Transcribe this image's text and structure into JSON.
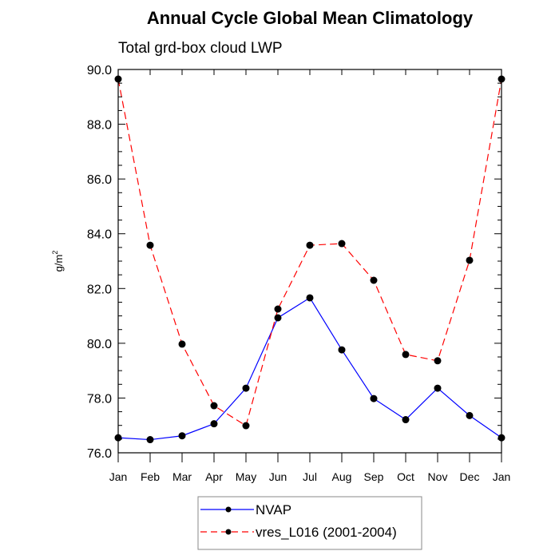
{
  "chart_data": {
    "type": "line",
    "title": "Annual Cycle Global Mean Climatology",
    "subtitle": "Total grd-box cloud LWP",
    "xlabel": "",
    "ylabel": "g/m",
    "ylabel_superscript": "2",
    "categories": [
      "Jan",
      "Feb",
      "Mar",
      "Apr",
      "May",
      "Jun",
      "Jul",
      "Aug",
      "Sep",
      "Oct",
      "Nov",
      "Dec",
      "Jan"
    ],
    "ylim": [
      76.0,
      90.0
    ],
    "yticks": [
      76.0,
      78.0,
      80.0,
      82.0,
      84.0,
      86.0,
      88.0,
      90.0
    ],
    "ytick_labels": [
      "76.0",
      "78.0",
      "80.0",
      "82.0",
      "84.0",
      "86.0",
      "88.0",
      "90.0"
    ],
    "yminor_step": 0.5,
    "grid": false,
    "legend_position": "bottom-center",
    "series": [
      {
        "name": "NVAP",
        "color": "#0000ff",
        "line_style": "solid",
        "marker": "filled-circle",
        "values": [
          76.55,
          76.48,
          76.62,
          77.06,
          78.36,
          80.93,
          81.66,
          79.76,
          77.98,
          77.21,
          78.36,
          77.36,
          76.55
        ]
      },
      {
        "name": "vres_L016 (2001-2004)",
        "color": "#ff0000",
        "line_style": "dashed",
        "marker": "filled-circle",
        "values": [
          89.65,
          83.58,
          79.97,
          77.72,
          76.99,
          81.25,
          83.58,
          83.64,
          82.3,
          79.59,
          79.36,
          83.03,
          89.65
        ]
      }
    ]
  }
}
